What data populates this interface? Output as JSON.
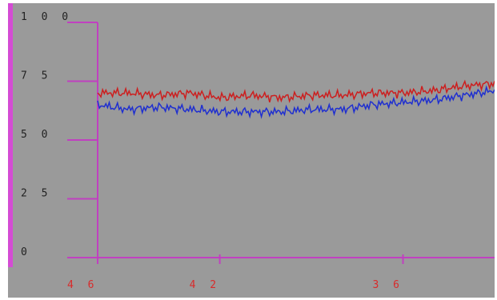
{
  "chart_data": {
    "type": "line",
    "title": "",
    "xlabel": "",
    "ylabel": "",
    "ylim": [
      0,
      100
    ],
    "xlim": [
      46,
      33
    ],
    "x_ticks": [
      "4 6",
      "4 2",
      "3 6"
    ],
    "x_tick_values": [
      46,
      42,
      36
    ],
    "y_ticks": [
      "1 0 0",
      "7 5",
      "5 0",
      "2 5",
      "0"
    ],
    "y_tick_values": [
      100,
      75,
      50,
      25,
      0
    ],
    "grid": false,
    "legend": "none",
    "colors": {
      "background": "#9a9a9a",
      "axis": "#c040c0",
      "series_red": "#cc1f1f",
      "series_blue": "#1f2fd0"
    },
    "series": [
      {
        "color": "#cc1f1f",
        "x": [
          46,
          45,
          44,
          43,
          42,
          41,
          40,
          39,
          38,
          37,
          36,
          35,
          34,
          33
        ],
        "values": [
          70,
          70,
          69,
          70,
          68,
          69,
          68,
          69,
          69,
          70,
          70,
          71,
          73,
          74
        ]
      },
      {
        "color": "#1f2fd0",
        "x": [
          46,
          45,
          44,
          43,
          42,
          41,
          40,
          39,
          38,
          37,
          36,
          35,
          34,
          33
        ],
        "values": [
          65,
          63,
          64,
          63,
          62,
          62,
          62,
          63,
          63,
          65,
          66,
          67,
          69,
          71
        ]
      }
    ]
  }
}
